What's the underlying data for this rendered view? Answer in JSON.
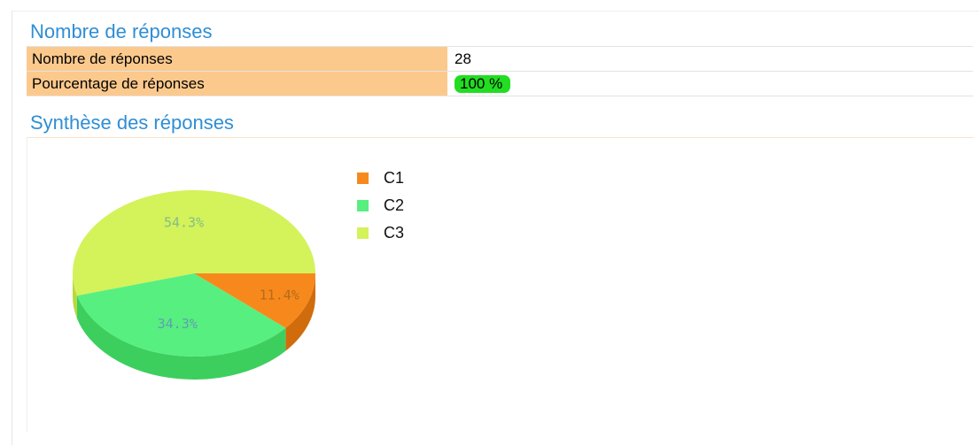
{
  "summary": {
    "title": "Nombre de réponses",
    "rows": [
      {
        "label": "Nombre de réponses",
        "value": "28"
      },
      {
        "label": "Pourcentage de réponses",
        "value": "100 %"
      }
    ],
    "response_percentage": 100,
    "colors": {
      "label_bg": "#fcc98d",
      "badge": "#22dd22",
      "title": "#2f8ed4"
    }
  },
  "synthesis": {
    "title": "Synthèse des réponses"
  },
  "chart_data": {
    "type": "pie",
    "title": "",
    "legend_position": "right",
    "slices": [
      {
        "name": "C1",
        "value": 11.4,
        "label": "11.4%",
        "color": "#f7891c",
        "side_color": "#d06c0c",
        "text_color": "#b36b1e"
      },
      {
        "name": "C2",
        "value": 34.3,
        "label": "34.3%",
        "color": "#57ef80",
        "side_color": "#3dcf5e",
        "text_color": "#5f9fb0"
      },
      {
        "name": "C3",
        "value": 54.3,
        "label": "54.3%",
        "color": "#d4f25a",
        "side_color": "#b8d83c",
        "text_color": "#7fbf86"
      }
    ]
  }
}
